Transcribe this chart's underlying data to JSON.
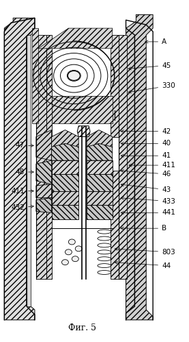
{
  "title": "Фиг. 5",
  "fig_width": 2.77,
  "fig_height": 4.99,
  "dpi": 100,
  "bg_color": "#ffffff",
  "line_color": "#000000"
}
